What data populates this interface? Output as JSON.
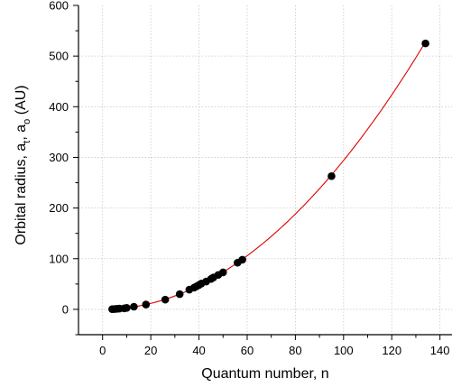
{
  "chart_data": {
    "type": "scatter",
    "xlabel": "Quantum number, n",
    "ylabel_main": "Orbital radius, a",
    "ylabel_sub1": "t",
    "ylabel_sep": ", a",
    "ylabel_sub2": "o",
    "ylabel_tail": " (AU)",
    "xlim": [
      -10,
      145
    ],
    "ylim": [
      -50,
      600
    ],
    "xticks": [
      0,
      20,
      40,
      60,
      80,
      100,
      120,
      140
    ],
    "yticks": [
      0,
      100,
      200,
      300,
      400,
      500,
      600
    ],
    "grid": true,
    "marker_color": "#000000",
    "fit_color": "#e00000",
    "series": [
      {
        "points": [
          {
            "x": 4,
            "y": 0.4
          },
          {
            "x": 5,
            "y": 0.7
          },
          {
            "x": 6,
            "y": 1.0
          },
          {
            "x": 7,
            "y": 1.5
          },
          {
            "x": 9,
            "y": 2.0
          },
          {
            "x": 10,
            "y": 2.8
          },
          {
            "x": 13,
            "y": 5.2
          },
          {
            "x": 18,
            "y": 9.5
          },
          {
            "x": 26,
            "y": 19.2
          },
          {
            "x": 32,
            "y": 30
          },
          {
            "x": 36,
            "y": 39
          },
          {
            "x": 38,
            "y": 43
          },
          {
            "x": 39,
            "y": 45.5
          },
          {
            "x": 40,
            "y": 48
          },
          {
            "x": 41,
            "y": 51
          },
          {
            "x": 43,
            "y": 55
          },
          {
            "x": 45,
            "y": 60
          },
          {
            "x": 46,
            "y": 63
          },
          {
            "x": 48,
            "y": 68
          },
          {
            "x": 50,
            "y": 73
          },
          {
            "x": 56,
            "y": 92
          },
          {
            "x": 58,
            "y": 98
          },
          {
            "x": 95,
            "y": 263
          },
          {
            "x": 134,
            "y": 525
          }
        ]
      }
    ],
    "fit": {
      "form": "y = a * x^b",
      "a": 0.0294,
      "b": 2.0
    }
  }
}
